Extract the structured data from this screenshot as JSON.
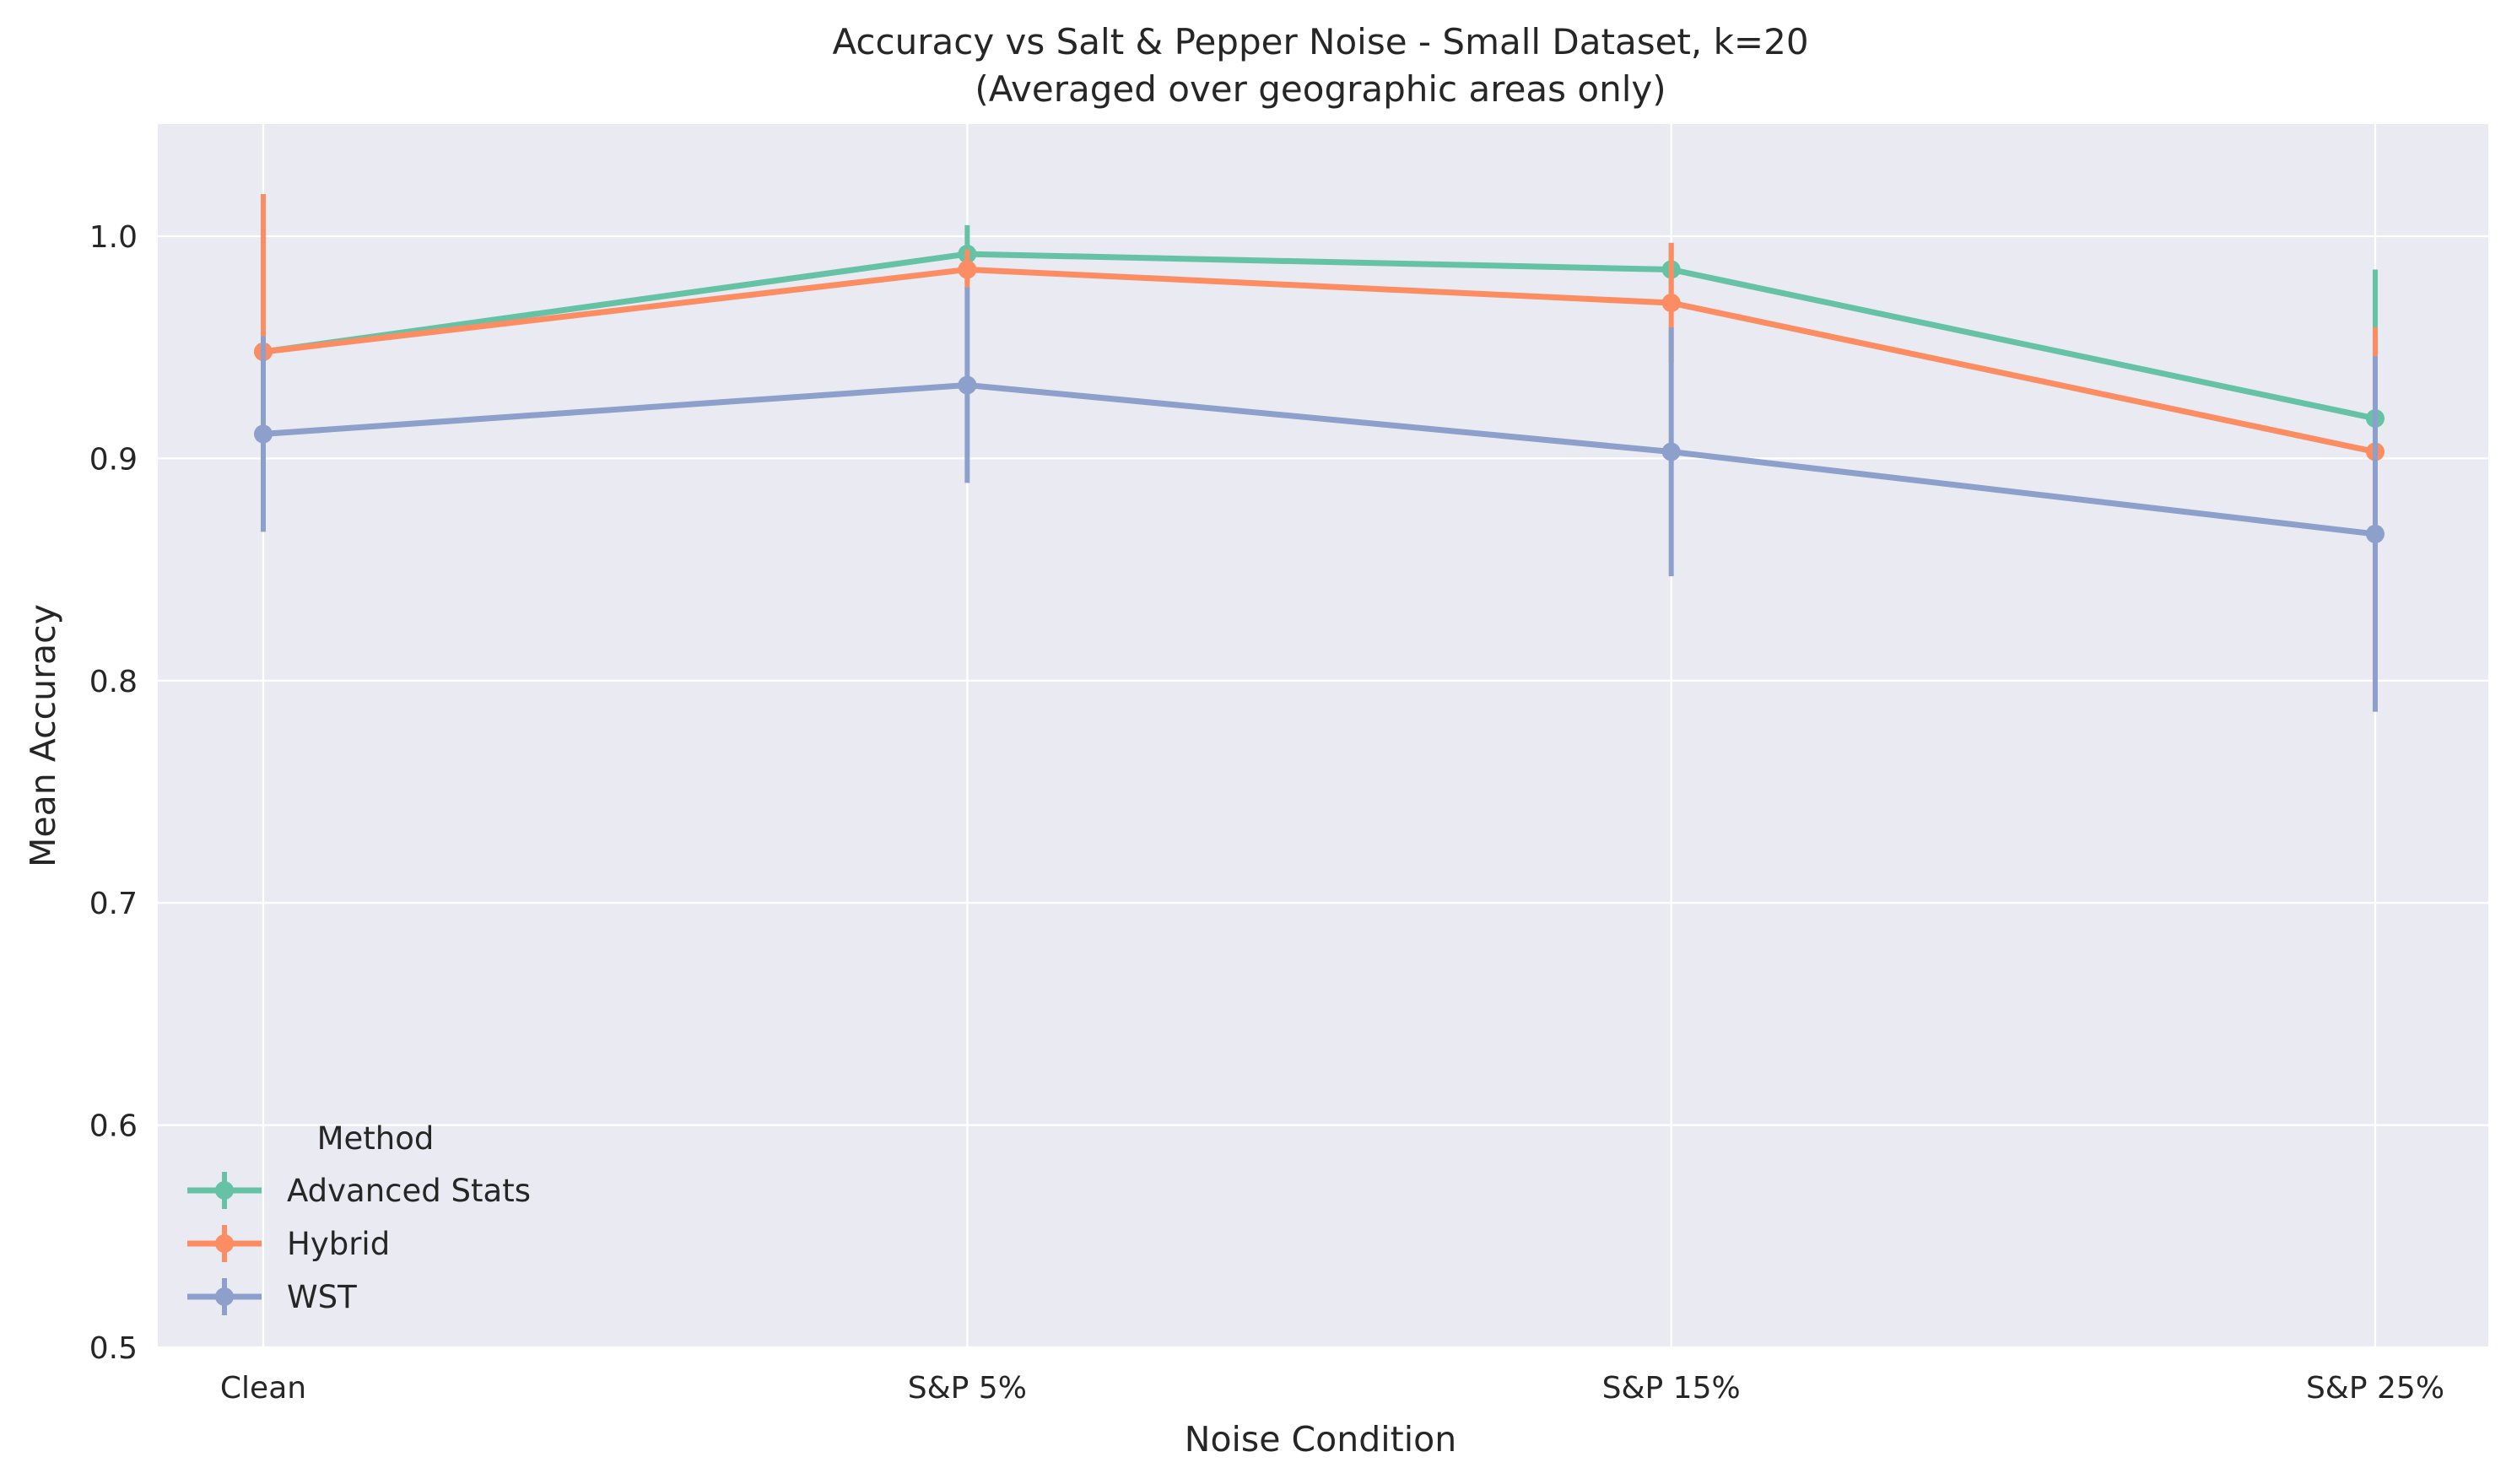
{
  "chart_data": {
    "type": "line",
    "title": "Accuracy vs Salt & Pepper Noise - Small Dataset, k=20",
    "subtitle": "(Averaged over geographic areas only)",
    "xlabel": "Noise Condition",
    "ylabel": "Mean Accuracy",
    "categories": [
      "Clean",
      "S&P 5%",
      "S&P 15%",
      "S&P 25%"
    ],
    "ylim": [
      0.5,
      1.05
    ],
    "yticks": [
      0.5,
      0.6,
      0.7,
      0.8,
      0.9,
      1.0
    ],
    "ytick_labels": [
      "0.5",
      "0.6",
      "0.7",
      "0.8",
      "0.9",
      "1.0"
    ],
    "grid": true,
    "legend": {
      "title": "Method",
      "placement": "bottom-left"
    },
    "series": [
      {
        "name": "Advanced Stats",
        "color": "#66c2a5",
        "values": [
          0.948,
          0.992,
          0.985,
          0.918
        ],
        "errors": [
          0.0,
          0.013,
          0.012,
          0.067
        ]
      },
      {
        "name": "Hybrid",
        "color": "#fc8d62",
        "values": [
          0.948,
          0.985,
          0.97,
          0.903
        ],
        "errors": [
          0.071,
          0.009,
          0.027,
          0.056
        ]
      },
      {
        "name": "WST",
        "color": "#8da0cb",
        "values": [
          0.911,
          0.933,
          0.903,
          0.866
        ],
        "errors": [
          0.044,
          0.044,
          0.056,
          0.08
        ]
      }
    ]
  }
}
